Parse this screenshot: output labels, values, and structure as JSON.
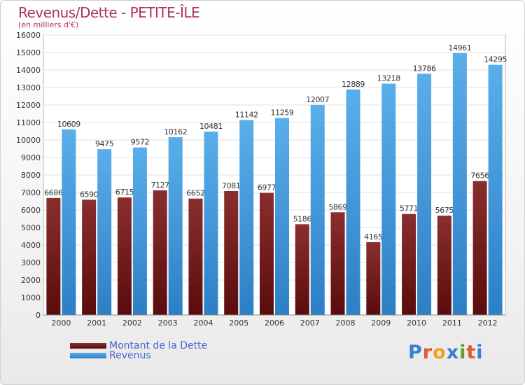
{
  "chart_data": {
    "type": "bar",
    "title": "Revenus/Dette - PETITE-ÎLE",
    "subtitle": "(en milliers d'€)",
    "categories": [
      "2000",
      "2001",
      "2002",
      "2003",
      "2004",
      "2005",
      "2006",
      "2007",
      "2008",
      "2009",
      "2010",
      "2011",
      "2012"
    ],
    "series": [
      {
        "name": "Montant de la Dette",
        "color": "#7a1a1a",
        "values": [
          6686,
          6590,
          6715,
          7127,
          6652,
          7081,
          6977,
          5186,
          5869,
          4165,
          5771,
          5675,
          7656
        ],
        "labels": [
          "6686",
          "6590",
          "6715",
          "7127",
          "6652",
          "7081",
          "6977",
          "5186",
          "5869",
          "4165",
          "5771",
          "5675",
          "7656"
        ]
      },
      {
        "name": "Revenus",
        "color": "#4a9fe0",
        "values": [
          10609,
          9475,
          9572,
          10162,
          10481,
          11142,
          11259,
          12007,
          12889,
          13218,
          13786,
          14961,
          14295
        ],
        "labels": [
          "10609",
          "9475",
          "9572",
          "10162",
          "10481",
          "11142",
          "11259",
          "12007",
          "12889",
          "13218",
          "13786",
          "14961",
          "14295"
        ]
      }
    ],
    "ylim": [
      0,
      16000
    ],
    "yticks": [
      "0",
      "1000",
      "2000",
      "3000",
      "4000",
      "5000",
      "6000",
      "7000",
      "8000",
      "9000",
      "10000",
      "11000",
      "12000",
      "13000",
      "14000",
      "15000",
      "16000"
    ],
    "grid": true,
    "legend": "bottom-left"
  },
  "logo": {
    "letters": [
      "P",
      "r",
      "o",
      "x",
      "i",
      "t",
      "i"
    ],
    "colors": [
      "#3b7fd0",
      "#e05a2a",
      "#f0a020",
      "#3b7fd0",
      "#5aa02a",
      "#e05a2a",
      "#3b7fd0"
    ]
  }
}
